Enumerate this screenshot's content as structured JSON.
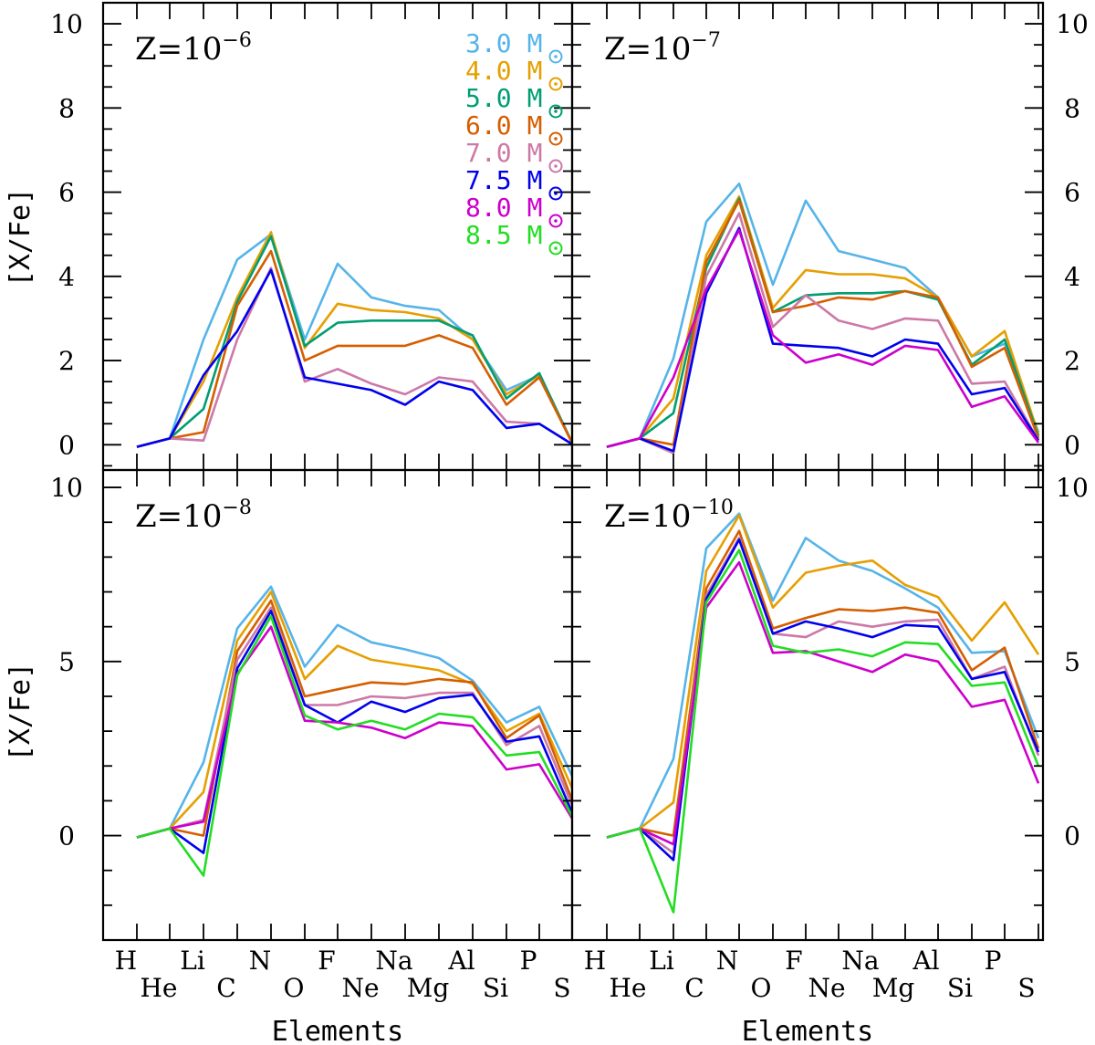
{
  "figure": {
    "x_axis_title": "Elements",
    "y_axis_title": "[X/Fe]"
  },
  "legend": {
    "entries": [
      {
        "mass": "3.0",
        "unit": "M",
        "color": "#56b4e9"
      },
      {
        "mass": "4.0",
        "unit": "M",
        "color": "#e69f00"
      },
      {
        "mass": "5.0",
        "unit": "M",
        "color": "#009e73"
      },
      {
        "mass": "6.0",
        "unit": "M",
        "color": "#d55e00"
      },
      {
        "mass": "7.0",
        "unit": "M",
        "color": "#cc79a7"
      },
      {
        "mass": "7.5",
        "unit": "M",
        "color": "#0000ee"
      },
      {
        "mass": "8.0",
        "unit": "M",
        "color": "#cc00cc"
      },
      {
        "mass": "8.5",
        "unit": "M",
        "color": "#22dd22"
      }
    ]
  },
  "chart_data": [
    {
      "type": "line",
      "panel": "top-left",
      "label": {
        "base": "Z=10",
        "exp": "−6"
      },
      "categories": [
        "H",
        "He",
        "Li",
        "C",
        "N",
        "O",
        "F",
        "Ne",
        "Na",
        "Mg",
        "Al",
        "Si",
        "P",
        "S"
      ],
      "ylim": [
        -0.6,
        10.5
      ],
      "yticks": [
        0,
        2,
        4,
        6,
        8,
        10
      ],
      "series": [
        {
          "name": "3.0",
          "values": [
            -0.05,
            0.15,
            2.5,
            4.4,
            5.0,
            2.5,
            4.3,
            3.5,
            3.3,
            3.2,
            2.5,
            1.3,
            1.65,
            0.0
          ]
        },
        {
          "name": "4.0",
          "values": [
            -0.05,
            0.15,
            1.5,
            3.5,
            5.05,
            2.3,
            3.35,
            3.2,
            3.15,
            3.0,
            2.5,
            1.2,
            1.65,
            0.0
          ]
        },
        {
          "name": "5.0",
          "values": [
            -0.05,
            0.15,
            0.85,
            3.4,
            4.95,
            2.35,
            2.9,
            2.95,
            2.95,
            2.95,
            2.6,
            1.1,
            1.7,
            0.0
          ]
        },
        {
          "name": "6.0",
          "values": [
            -0.05,
            0.15,
            0.3,
            3.3,
            4.6,
            2.0,
            2.35,
            2.35,
            2.35,
            2.6,
            2.3,
            0.95,
            1.6,
            0.0
          ]
        },
        {
          "name": "7.0",
          "values": [
            -0.05,
            0.15,
            0.1,
            2.5,
            4.2,
            1.5,
            1.8,
            1.45,
            1.2,
            1.6,
            1.5,
            0.55,
            0.5,
            0.0
          ]
        },
        {
          "name": "7.5",
          "values": [
            -0.05,
            0.15,
            1.65,
            2.7,
            4.15,
            1.6,
            1.45,
            1.3,
            0.95,
            1.5,
            1.3,
            0.4,
            0.5,
            0.0
          ]
        }
      ]
    },
    {
      "type": "line",
      "panel": "top-right",
      "label": {
        "base": "Z=10",
        "exp": "−7"
      },
      "categories": [
        "H",
        "He",
        "Li",
        "C",
        "N",
        "O",
        "F",
        "Ne",
        "Na",
        "Mg",
        "Al",
        "Si",
        "P",
        "S"
      ],
      "ylim": [
        -0.6,
        10.5
      ],
      "yticks": [
        0,
        2,
        4,
        6,
        8,
        10
      ],
      "series": [
        {
          "name": "3.0",
          "values": [
            -0.05,
            0.15,
            2.05,
            5.3,
            6.2,
            3.8,
            5.8,
            4.6,
            4.4,
            4.2,
            3.5,
            2.1,
            2.4,
            0.3
          ]
        },
        {
          "name": "4.0",
          "values": [
            -0.05,
            0.15,
            1.1,
            4.5,
            5.9,
            3.25,
            4.15,
            4.05,
            4.05,
            3.95,
            3.5,
            2.1,
            2.7,
            0.25
          ]
        },
        {
          "name": "5.0",
          "values": [
            -0.05,
            0.15,
            0.75,
            4.2,
            5.85,
            3.15,
            3.55,
            3.6,
            3.6,
            3.65,
            3.45,
            1.9,
            2.5,
            0.2
          ]
        },
        {
          "name": "6.0",
          "values": [
            -0.05,
            0.15,
            0.0,
            4.35,
            5.8,
            3.15,
            3.3,
            3.5,
            3.45,
            3.65,
            3.5,
            1.85,
            2.3,
            0.15
          ]
        },
        {
          "name": "7.0",
          "values": [
            -0.05,
            0.15,
            -0.2,
            4.0,
            5.5,
            2.8,
            3.55,
            2.95,
            2.75,
            3.0,
            2.95,
            1.45,
            1.5,
            0.1
          ]
        },
        {
          "name": "7.5",
          "values": [
            -0.05,
            0.15,
            -0.15,
            3.6,
            5.15,
            2.4,
            2.35,
            2.3,
            2.1,
            2.5,
            2.4,
            1.2,
            1.35,
            0.1
          ]
        },
        {
          "name": "8.0",
          "values": [
            -0.05,
            0.15,
            1.6,
            3.7,
            5.1,
            2.6,
            1.95,
            2.15,
            1.9,
            2.35,
            2.25,
            0.9,
            1.15,
            0.05
          ]
        }
      ]
    },
    {
      "type": "line",
      "panel": "bottom-left",
      "label": {
        "base": "Z=10",
        "exp": "−8"
      },
      "categories": [
        "H",
        "He",
        "Li",
        "C",
        "N",
        "O",
        "F",
        "Ne",
        "Na",
        "Mg",
        "Al",
        "Si",
        "P",
        "S"
      ],
      "ylim": [
        -3.0,
        10.5
      ],
      "yticks": [
        0,
        5,
        10
      ],
      "series": [
        {
          "name": "3.0",
          "values": [
            -0.05,
            0.2,
            2.1,
            5.95,
            7.15,
            4.85,
            6.05,
            5.55,
            5.35,
            5.1,
            4.45,
            3.25,
            3.7,
            1.65
          ]
        },
        {
          "name": "4.0",
          "values": [
            -0.05,
            0.2,
            1.25,
            5.6,
            7.0,
            4.5,
            5.45,
            5.05,
            4.9,
            4.75,
            4.35,
            3.0,
            3.5,
            1.3
          ]
        },
        {
          "name": "6.0",
          "values": [
            -0.05,
            0.2,
            0.0,
            5.3,
            6.75,
            4.0,
            4.2,
            4.4,
            4.35,
            4.5,
            4.4,
            2.8,
            3.45,
            0.95
          ]
        },
        {
          "name": "7.0",
          "values": [
            -0.05,
            0.2,
            0.45,
            5.05,
            6.55,
            3.75,
            3.75,
            4.0,
            3.95,
            4.1,
            4.1,
            2.6,
            3.15,
            0.8
          ]
        },
        {
          "name": "7.5",
          "values": [
            -0.05,
            0.2,
            -0.5,
            4.8,
            6.45,
            3.75,
            3.25,
            3.85,
            3.55,
            3.95,
            4.05,
            2.7,
            2.85,
            0.6
          ]
        },
        {
          "name": "8.0",
          "values": [
            -0.05,
            0.2,
            0.4,
            4.65,
            6.0,
            3.3,
            3.25,
            3.1,
            2.8,
            3.25,
            3.15,
            1.9,
            2.05,
            0.45
          ]
        },
        {
          "name": "8.5",
          "values": [
            -0.05,
            0.2,
            -1.15,
            4.6,
            6.3,
            3.45,
            3.05,
            3.3,
            3.05,
            3.5,
            3.4,
            2.3,
            2.4,
            0.5
          ]
        }
      ]
    },
    {
      "type": "line",
      "panel": "bottom-right",
      "label": {
        "base": "Z=10",
        "exp": "−10"
      },
      "categories": [
        "H",
        "He",
        "Li",
        "C",
        "N",
        "O",
        "F",
        "Ne",
        "Na",
        "Mg",
        "Al",
        "Si",
        "P",
        "S"
      ],
      "ylim": [
        -3.0,
        10.5
      ],
      "yticks": [
        0,
        5,
        10
      ],
      "series": [
        {
          "name": "3.0",
          "values": [
            -0.05,
            0.2,
            2.2,
            8.25,
            9.25,
            6.75,
            8.55,
            7.9,
            7.6,
            7.1,
            6.55,
            5.25,
            5.3,
            2.8
          ]
        },
        {
          "name": "4.0",
          "values": [
            -0.05,
            0.2,
            0.95,
            7.6,
            9.2,
            6.55,
            7.55,
            7.75,
            7.9,
            7.2,
            6.85,
            5.6,
            6.7,
            5.2
          ]
        },
        {
          "name": "6.0",
          "values": [
            -0.05,
            0.2,
            0.0,
            7.1,
            8.75,
            5.95,
            6.25,
            6.5,
            6.45,
            6.55,
            6.4,
            4.75,
            5.4,
            2.5
          ]
        },
        {
          "name": "7.0",
          "values": [
            -0.05,
            0.2,
            -0.5,
            6.9,
            8.55,
            5.8,
            5.7,
            6.15,
            6.0,
            6.15,
            6.2,
            4.5,
            4.85,
            2.3
          ]
        },
        {
          "name": "7.5",
          "values": [
            -0.05,
            0.2,
            -0.7,
            6.8,
            8.5,
            5.8,
            6.15,
            5.95,
            5.7,
            6.05,
            6.0,
            4.5,
            4.7,
            2.4
          ]
        },
        {
          "name": "8.0",
          "values": [
            -0.05,
            0.2,
            -0.25,
            6.55,
            7.85,
            5.25,
            5.3,
            5.0,
            4.7,
            5.2,
            5.0,
            3.7,
            3.9,
            1.5
          ]
        },
        {
          "name": "8.5",
          "values": [
            -0.05,
            0.2,
            -2.2,
            6.7,
            8.2,
            5.45,
            5.25,
            5.35,
            5.15,
            5.55,
            5.5,
            4.3,
            4.4,
            2.0
          ]
        }
      ]
    }
  ]
}
